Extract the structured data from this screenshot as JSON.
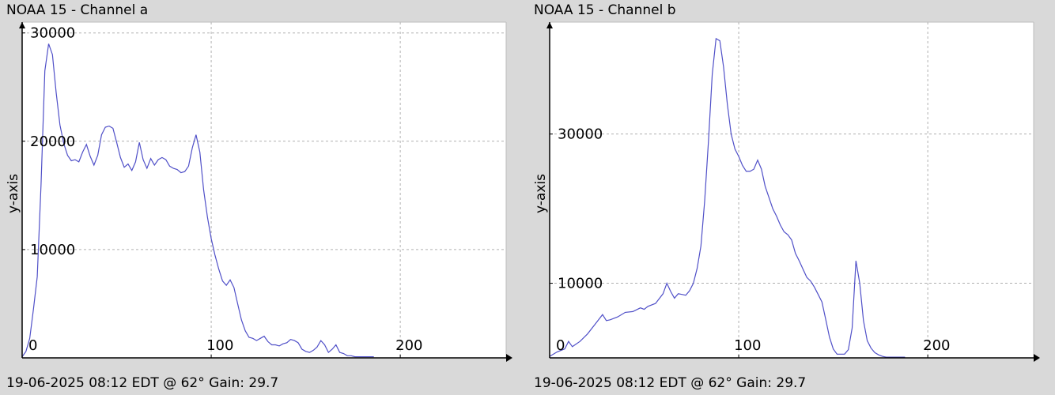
{
  "panels": [
    {
      "title": "NOAA 15 - Channel a",
      "footer": "19-06-2025 08:12 EDT @ 62° Gain: 29.7",
      "chart_data": {
        "type": "line",
        "title": "NOAA 15 - Channel a",
        "xlabel": "",
        "ylabel": "y-axis",
        "xlim": [
          0,
          256
        ],
        "ylim": [
          0,
          31000
        ],
        "x_ticks": [
          0,
          100,
          200
        ],
        "y_ticks": [
          10000,
          20000,
          30000
        ],
        "grid": true,
        "line_color": "#5050c8",
        "series": [
          {
            "x": [
              0,
              2,
              4,
              6,
              8,
              10,
              12,
              14,
              16,
              18,
              20,
              22,
              24,
              26,
              28,
              30,
              32,
              34,
              36,
              38,
              40,
              42,
              44,
              46,
              48,
              50,
              52,
              54,
              56,
              58,
              60,
              62,
              64,
              66,
              68,
              70,
              72,
              74,
              76,
              78,
              80,
              82,
              84,
              86,
              88,
              90,
              92,
              94,
              96,
              98,
              100,
              102,
              104,
              106,
              108,
              110,
              112,
              114,
              116,
              118,
              120,
              122,
              124,
              126,
              128,
              130,
              132,
              134,
              136,
              138,
              140,
              142,
              144,
              146,
              148,
              150,
              152,
              154,
              156,
              158,
              160,
              162,
              164,
              166,
              168,
              170,
              172,
              174,
              176,
              178,
              180,
              182,
              184,
              186
            ],
            "y": [
              100,
              600,
              1800,
              4500,
              7500,
              16000,
              26500,
              29000,
              28000,
              24500,
              21500,
              19800,
              18700,
              18200,
              18300,
              18100,
              19000,
              19700,
              18600,
              17800,
              18700,
              20600,
              21300,
              21400,
              21200,
              19900,
              18500,
              17600,
              17900,
              17300,
              18100,
              19900,
              18300,
              17500,
              18400,
              17800,
              18300,
              18500,
              18300,
              17700,
              17500,
              17400,
              17100,
              17200,
              17700,
              19400,
              20600,
              19000,
              15500,
              13000,
              11000,
              9500,
              8200,
              7100,
              6700,
              7200,
              6500,
              5000,
              3500,
              2500,
              1900,
              1800,
              1600,
              1800,
              2000,
              1500,
              1200,
              1200,
              1100,
              1300,
              1400,
              1700,
              1600,
              1400,
              800,
              600,
              500,
              700,
              1000,
              1600,
              1200,
              500,
              800,
              1200,
              500,
              400,
              200,
              200,
              100,
              100,
              100,
              100,
              100,
              100
            ]
          }
        ]
      }
    },
    {
      "title": "NOAA 15 - Channel b",
      "footer": "19-06-2025 08:12 EDT @ 62° Gain: 29.7",
      "chart_data": {
        "type": "line",
        "title": "NOAA 15 - Channel b",
        "xlabel": "",
        "ylabel": "y-axis",
        "xlim": [
          0,
          256
        ],
        "ylim": [
          0,
          45000
        ],
        "x_ticks": [
          0,
          100,
          200
        ],
        "y_ticks": [
          10000,
          30000
        ],
        "grid": true,
        "line_color": "#5050c8",
        "series": [
          {
            "x": [
              0,
              4,
              8,
              10,
              12,
              16,
              20,
              24,
              28,
              30,
              32,
              36,
              40,
              44,
              48,
              50,
              52,
              56,
              60,
              62,
              64,
              66,
              68,
              70,
              72,
              74,
              76,
              78,
              80,
              82,
              84,
              86,
              88,
              90,
              92,
              94,
              96,
              98,
              100,
              102,
              104,
              106,
              108,
              110,
              112,
              114,
              116,
              118,
              120,
              122,
              124,
              126,
              128,
              130,
              132,
              134,
              136,
              138,
              140,
              142,
              144,
              146,
              148,
              150,
              152,
              154,
              156,
              158,
              160,
              162,
              164,
              166,
              168,
              170,
              172,
              174,
              176,
              178,
              180,
              182,
              184,
              186,
              188
            ],
            "y": [
              200,
              800,
              1200,
              2200,
              1500,
              2200,
              3200,
              4500,
              5800,
              5000,
              5100,
              5500,
              6100,
              6200,
              6700,
              6500,
              6900,
              7300,
              8600,
              10000,
              8900,
              8000,
              8600,
              8500,
              8400,
              9000,
              10000,
              12000,
              15000,
              21000,
              29000,
              38000,
              42800,
              42500,
              39000,
              34000,
              30000,
              28000,
              27000,
              25800,
              25000,
              25000,
              25300,
              26500,
              25300,
              23000,
              21500,
              20000,
              19000,
              17800,
              16900,
              16500,
              15800,
              14000,
              13000,
              11900,
              10800,
              10300,
              9500,
              8500,
              7500,
              5200,
              2800,
              1200,
              500,
              500,
              500,
              1100,
              4000,
              13000,
              10000,
              5000,
              2300,
              1300,
              700,
              400,
              200,
              100,
              100,
              100,
              100,
              100,
              100
            ]
          }
        ]
      }
    }
  ]
}
